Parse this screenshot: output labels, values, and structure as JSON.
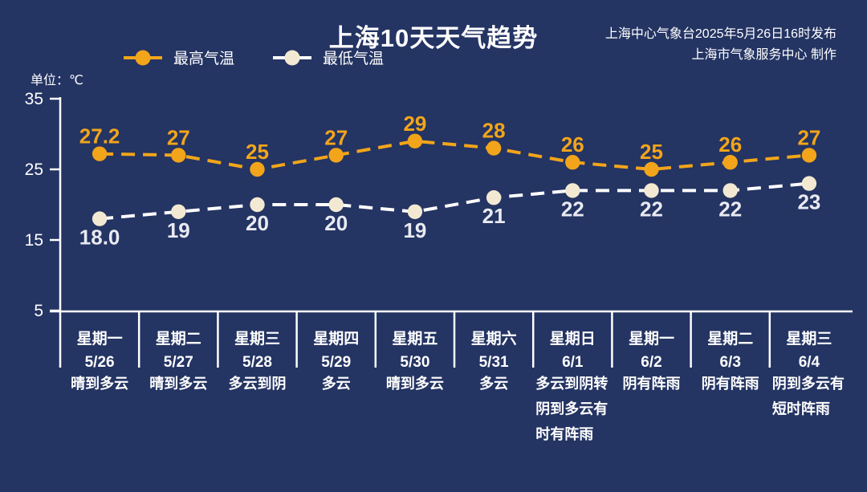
{
  "colors": {
    "background": "#243463",
    "axis": "#ffffff",
    "high_accent": "#F2A51A",
    "low_dot": "#F3E9D2",
    "low_label": "#E9EAF2",
    "text": "#ffffff"
  },
  "header": {
    "title": "上海10天天气趋势",
    "issued_line1": "上海中心气象台2025年5月26日16时发布",
    "issued_line2": "上海市气象服务中心 制作"
  },
  "unit_label": "单位：℃",
  "legend": [
    {
      "label": "最高气温",
      "line_color": "#F2A51A",
      "dot_color": "#F2A51A"
    },
    {
      "label": "最低气温",
      "line_color": "#FFFFFF",
      "dot_color": "#F3E9D2"
    }
  ],
  "chart_data": {
    "type": "line",
    "title": "上海10天天气趋势",
    "unit": "单位：℃",
    "ylim": [
      5,
      35
    ],
    "yticks": [
      35,
      25,
      15,
      5
    ],
    "grid": false,
    "legend_position": "top-left",
    "line_style": "dashed",
    "columns": [
      {
        "weekday": "星期一",
        "date": "5/26",
        "condition": [
          "晴到多云"
        ]
      },
      {
        "weekday": "星期二",
        "date": "5/27",
        "condition": [
          "晴到多云"
        ]
      },
      {
        "weekday": "星期三",
        "date": "5/28",
        "condition": [
          "多云到阴"
        ]
      },
      {
        "weekday": "星期四",
        "date": "5/29",
        "condition": [
          "多云"
        ]
      },
      {
        "weekday": "星期五",
        "date": "5/30",
        "condition": [
          "晴到多云"
        ]
      },
      {
        "weekday": "星期六",
        "date": "5/31",
        "condition": [
          "多云"
        ]
      },
      {
        "weekday": "星期日",
        "date": "6/1",
        "condition": [
          "多云到阴转",
          "阴到多云有",
          "时有阵雨"
        ]
      },
      {
        "weekday": "星期一",
        "date": "6/2",
        "condition": [
          "阴有阵雨"
        ]
      },
      {
        "weekday": "星期二",
        "date": "6/3",
        "condition": [
          "阴有阵雨"
        ]
      },
      {
        "weekday": "星期三",
        "date": "6/4",
        "condition": [
          "阴到多云有",
          "短时阵雨"
        ]
      }
    ],
    "series": [
      {
        "name": "最高气温",
        "color": "#F2A51A",
        "dot_color": "#F2A51A",
        "label_color": "#F2A51A",
        "label_position": "above",
        "values": [
          27.2,
          27,
          25,
          27,
          29,
          28,
          26,
          25,
          26,
          27
        ],
        "labels": [
          "27.2",
          "27",
          "25",
          "27",
          "29",
          "28",
          "26",
          "25",
          "26",
          "27"
        ]
      },
      {
        "name": "最低气温",
        "color": "#FFFFFF",
        "dot_color": "#F3E9D2",
        "label_color": "#E9EAF2",
        "label_position": "below",
        "values": [
          18.0,
          19,
          20,
          20,
          19,
          21,
          22,
          22,
          22,
          23
        ],
        "labels": [
          "18.0",
          "19",
          "20",
          "20",
          "19",
          "21",
          "22",
          "22",
          "22",
          "23"
        ]
      }
    ]
  }
}
